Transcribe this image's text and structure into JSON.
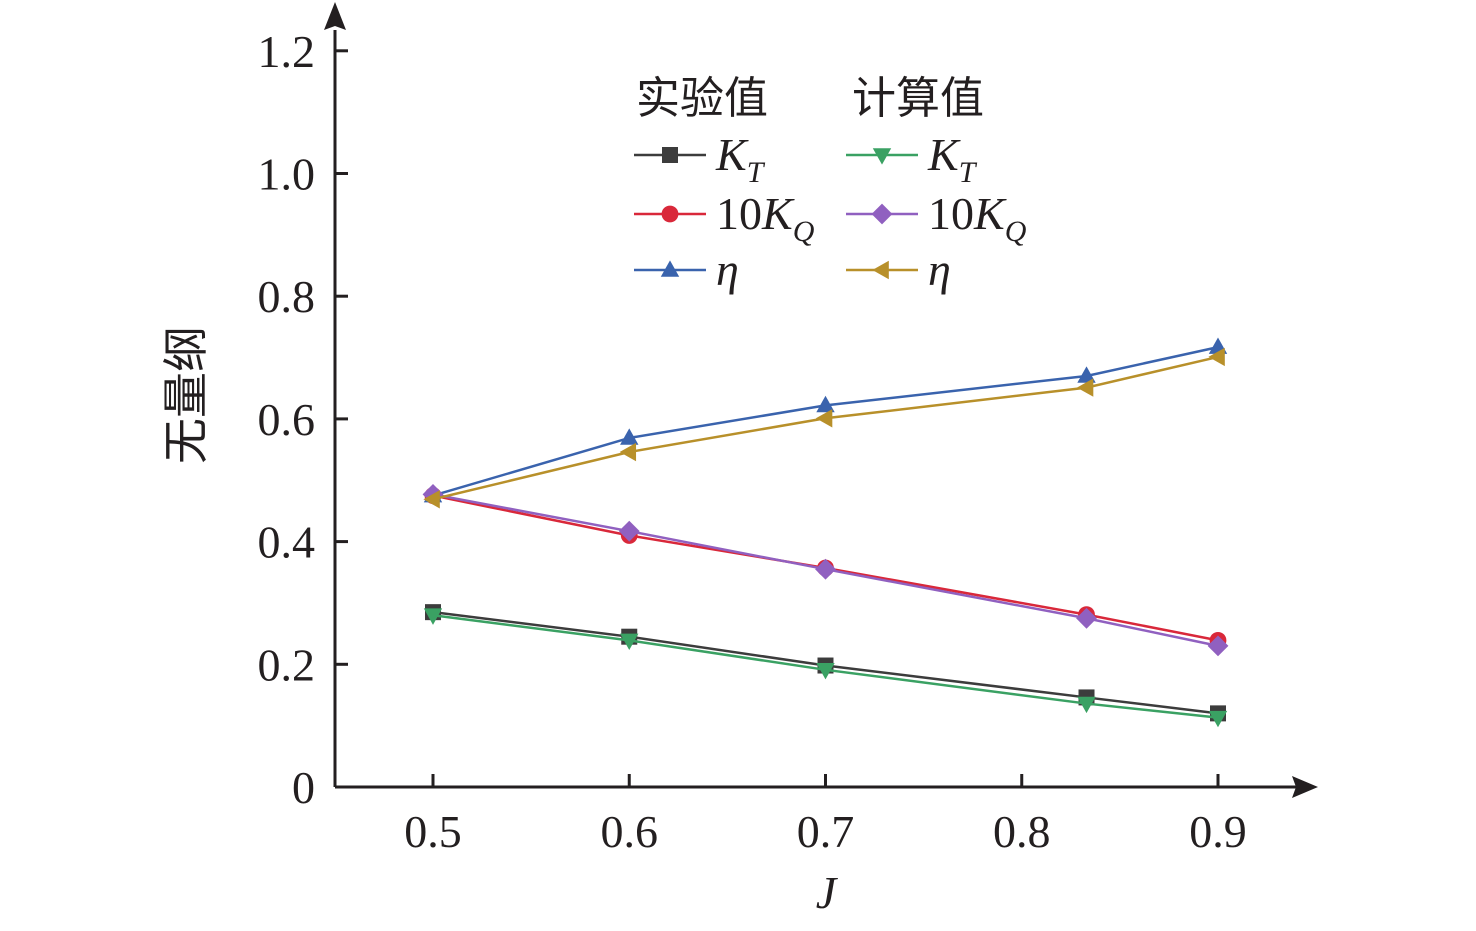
{
  "chart_data": {
    "type": "line",
    "xlabel": "J",
    "ylabel": "无量纲",
    "xlim": [
      0.45,
      0.95
    ],
    "ylim": [
      0,
      1.25
    ],
    "x_ticks": [
      0.5,
      0.6,
      0.7,
      0.8,
      0.9
    ],
    "x_tick_labels": [
      "0.5",
      "0.6",
      "0.7",
      "0.8",
      "0.9"
    ],
    "y_ticks": [
      0,
      0.2,
      0.4,
      0.6,
      0.8,
      1.0,
      1.2
    ],
    "y_tick_labels": [
      "0",
      "0.2",
      "0.4",
      "0.6",
      "0.8",
      "1.0",
      "1.2"
    ],
    "grid": false,
    "legend_placement": "top-center",
    "legend_headers": [
      "实验值",
      "计算值"
    ],
    "x": [
      0.5,
      0.6,
      0.7,
      0.833,
      0.9
    ],
    "series": [
      {
        "group": "实验值",
        "name_main": "K",
        "name_sub": "T",
        "marker": "square",
        "color": "#3c3c3c",
        "values": [
          0.285,
          0.245,
          0.198,
          0.146,
          0.12
        ]
      },
      {
        "group": "实验值",
        "name_main": "10K",
        "name_sub": "Q",
        "marker": "circle",
        "color": "#d9283a",
        "values": [
          0.475,
          0.41,
          0.357,
          0.281,
          0.239
        ]
      },
      {
        "group": "实验值",
        "name_main": "η",
        "name_sub": "",
        "marker": "triangle-up",
        "color": "#3a63ad",
        "values": [
          0.475,
          0.569,
          0.622,
          0.67,
          0.717
        ]
      },
      {
        "group": "计算值",
        "name_main": "K",
        "name_sub": "T",
        "marker": "triangle-down",
        "color": "#3aa163",
        "values": [
          0.28,
          0.239,
          0.191,
          0.136,
          0.113
        ]
      },
      {
        "group": "计算值",
        "name_main": "10K",
        "name_sub": "Q",
        "marker": "diamond",
        "color": "#9060c0",
        "values": [
          0.477,
          0.417,
          0.355,
          0.275,
          0.23
        ]
      },
      {
        "group": "计算值",
        "name_main": "η",
        "name_sub": "",
        "marker": "triangle-left",
        "color": "#b8902a",
        "values": [
          0.469,
          0.546,
          0.601,
          0.651,
          0.701
        ]
      }
    ]
  }
}
